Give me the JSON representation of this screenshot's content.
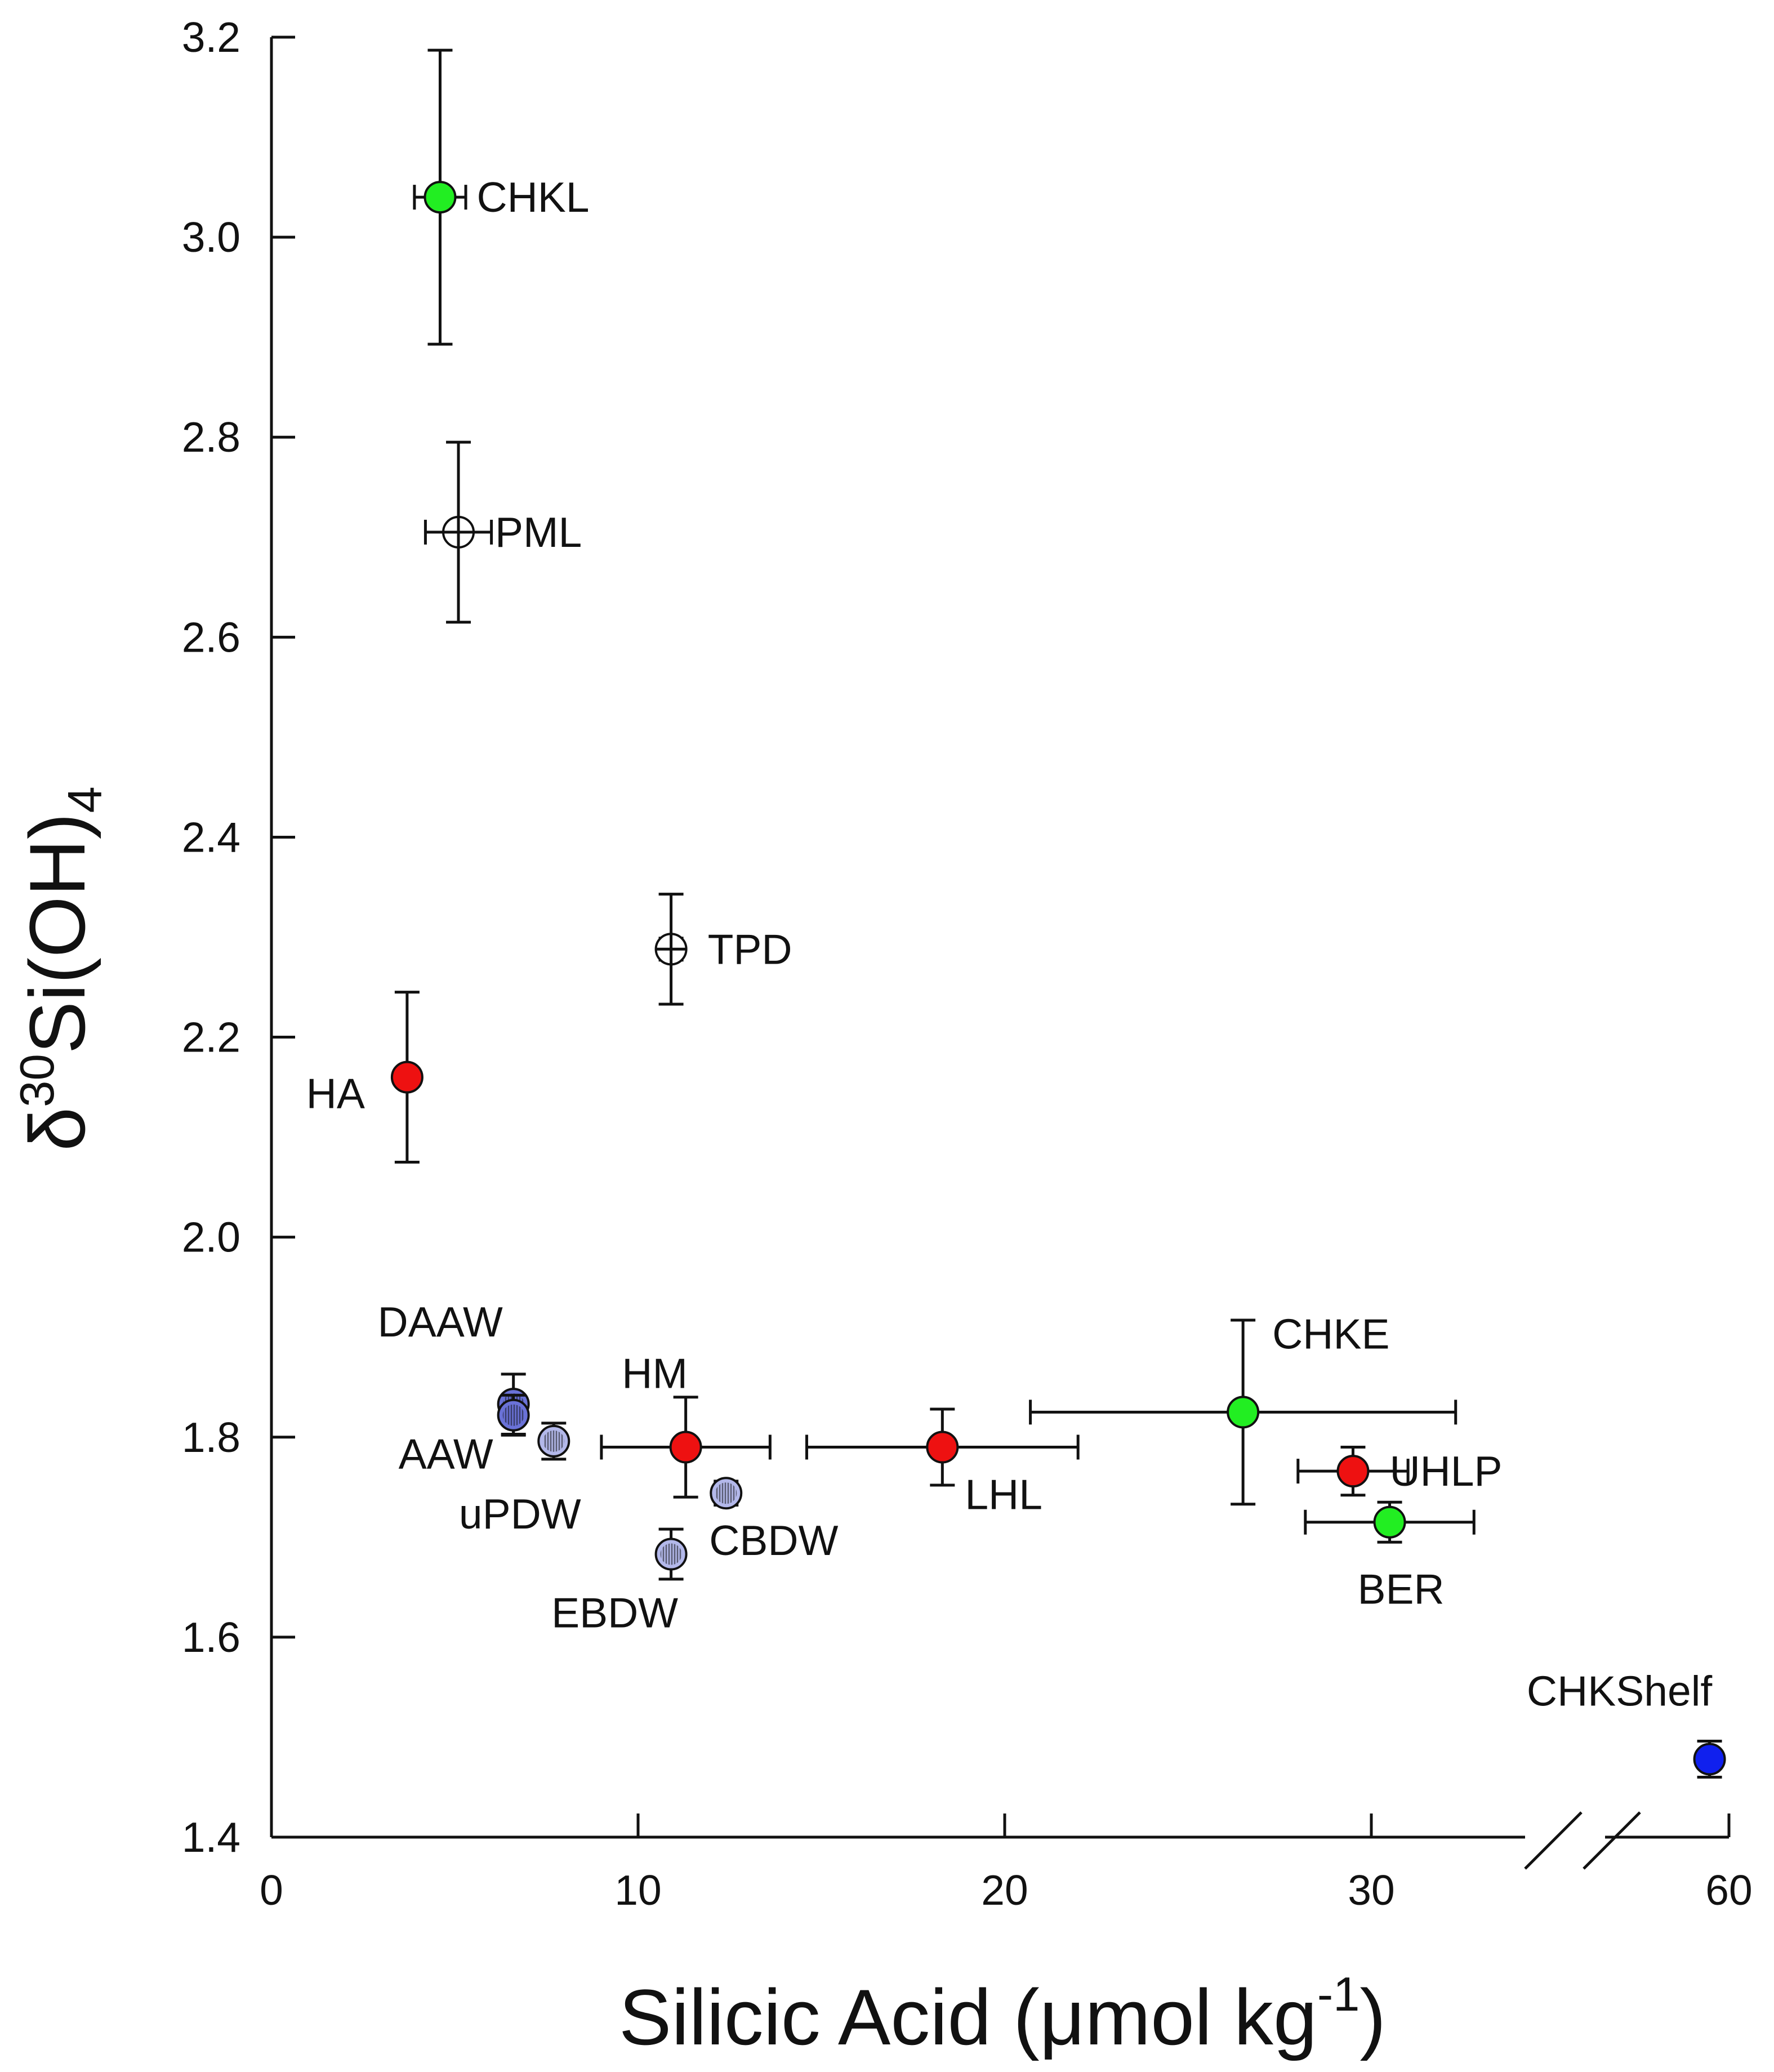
{
  "chart_data": {
    "type": "scatter",
    "title": "",
    "xlabel": {
      "prefix": "Silicic Acid (",
      "mu": "μ",
      "unit": "mol kg",
      "sup": "-1",
      "suffix": ")"
    },
    "ylabel": {
      "delta": "δ",
      "sup": "30",
      "main": "Si(OH)",
      "sub": "4"
    },
    "xlim": [
      0,
      60
    ],
    "ylim": [
      1.4,
      3.2
    ],
    "x_axis_break": {
      "between": [
        40,
        55
      ]
    },
    "x_ticks": [
      {
        "value": 0,
        "label": "0"
      },
      {
        "value": 10,
        "label": "10"
      },
      {
        "value": 20,
        "label": "20"
      },
      {
        "value": 30,
        "label": "30"
      },
      {
        "value": 60,
        "label": "60"
      }
    ],
    "y_ticks": [
      {
        "value": 1.4,
        "label": "1.4"
      },
      {
        "value": 1.6,
        "label": "1.6"
      },
      {
        "value": 1.8,
        "label": "1.8"
      },
      {
        "value": 2.0,
        "label": "2.0"
      },
      {
        "value": 2.2,
        "label": "2.2"
      },
      {
        "value": 2.4,
        "label": "2.4"
      },
      {
        "value": 2.6,
        "label": "2.6"
      },
      {
        "value": 2.8,
        "label": "2.8"
      },
      {
        "value": 3.0,
        "label": "3.0"
      },
      {
        "value": 3.2,
        "label": "3.2"
      }
    ],
    "grid": false,
    "legend": "none",
    "colors": {
      "green": "#22ee22",
      "red": "#ee1111",
      "light_blue": "#b3b8ea",
      "mid_blue": "#6a72d8",
      "blue": "#1020ee",
      "open": "#ffffff",
      "stroke": "#111111"
    },
    "points": [
      {
        "label": "CHKL",
        "x": 4.6,
        "y": 3.04,
        "xerr": 0.7,
        "yerr": 0.147,
        "fill": "green",
        "label_pos": "right"
      },
      {
        "label": "PML",
        "x": 5.1,
        "y": 2.705,
        "xerr": 0.9,
        "yerr": 0.09,
        "fill": "open",
        "marker": "open-cross",
        "label_pos": "right"
      },
      {
        "label": "TPD",
        "x": 10.9,
        "y": 2.288,
        "xerr": 0.3,
        "yerr": 0.055,
        "fill": "open",
        "marker": "open-cross",
        "label_pos": "right"
      },
      {
        "label": "HA",
        "x": 3.7,
        "y": 2.16,
        "xerr": 0,
        "yerr": 0.085,
        "fill": "red",
        "label_pos": "left-below"
      },
      {
        "label": "DAAW",
        "x": 6.6,
        "y": 1.833,
        "xerr": 0,
        "yerr": 0.03,
        "fill": "mid_blue",
        "marker": "hatched",
        "label_pos": "above-left"
      },
      {
        "label": "AAW",
        "x": 6.6,
        "y": 1.822,
        "xerr": 0,
        "yerr": 0.02,
        "fill": "mid_blue",
        "marker": "hatched",
        "label_pos": "left-below"
      },
      {
        "label": "uPDW",
        "x": 7.7,
        "y": 1.796,
        "xerr": 0,
        "yerr": 0.018,
        "fill": "light_blue",
        "marker": "hatched",
        "label_pos": "below"
      },
      {
        "label": "HM",
        "x": 11.3,
        "y": 1.79,
        "xerr": 2.3,
        "yerr": 0.05,
        "fill": "red",
        "label_pos": "above-left"
      },
      {
        "label": "CBDW",
        "x": 12.4,
        "y": 1.744,
        "xerr": 0,
        "yerr": 0.012,
        "fill": "light_blue",
        "marker": "hatched",
        "label_pos": "below-right"
      },
      {
        "label": "EBDW",
        "x": 10.9,
        "y": 1.683,
        "xerr": 0,
        "yerr": 0.025,
        "fill": "light_blue",
        "marker": "hatched",
        "label_pos": "below-left"
      },
      {
        "label": "LHL",
        "x": 18.3,
        "y": 1.79,
        "xerr": 3.7,
        "yerr": 0.038,
        "fill": "red",
        "label_pos": "below-right"
      },
      {
        "label": "CHKE",
        "x": 26.5,
        "y": 1.825,
        "xerr": 5.8,
        "yerr": 0.092,
        "fill": "green",
        "label_pos": "above-right"
      },
      {
        "label": "UHLP",
        "x": 29.5,
        "y": 1.766,
        "xerr": 1.5,
        "yerr": 0.024,
        "fill": "red",
        "label_pos": "right"
      },
      {
        "label": "BER",
        "x": 30.5,
        "y": 1.715,
        "xerr": 2.3,
        "yerr": 0.02,
        "fill": "green",
        "label_pos": "below"
      },
      {
        "label": "CHKShelf",
        "x": 58.9,
        "y": 1.478,
        "xerr": 0,
        "yerr": 0.018,
        "fill": "blue",
        "label_pos": "above-left"
      }
    ]
  }
}
